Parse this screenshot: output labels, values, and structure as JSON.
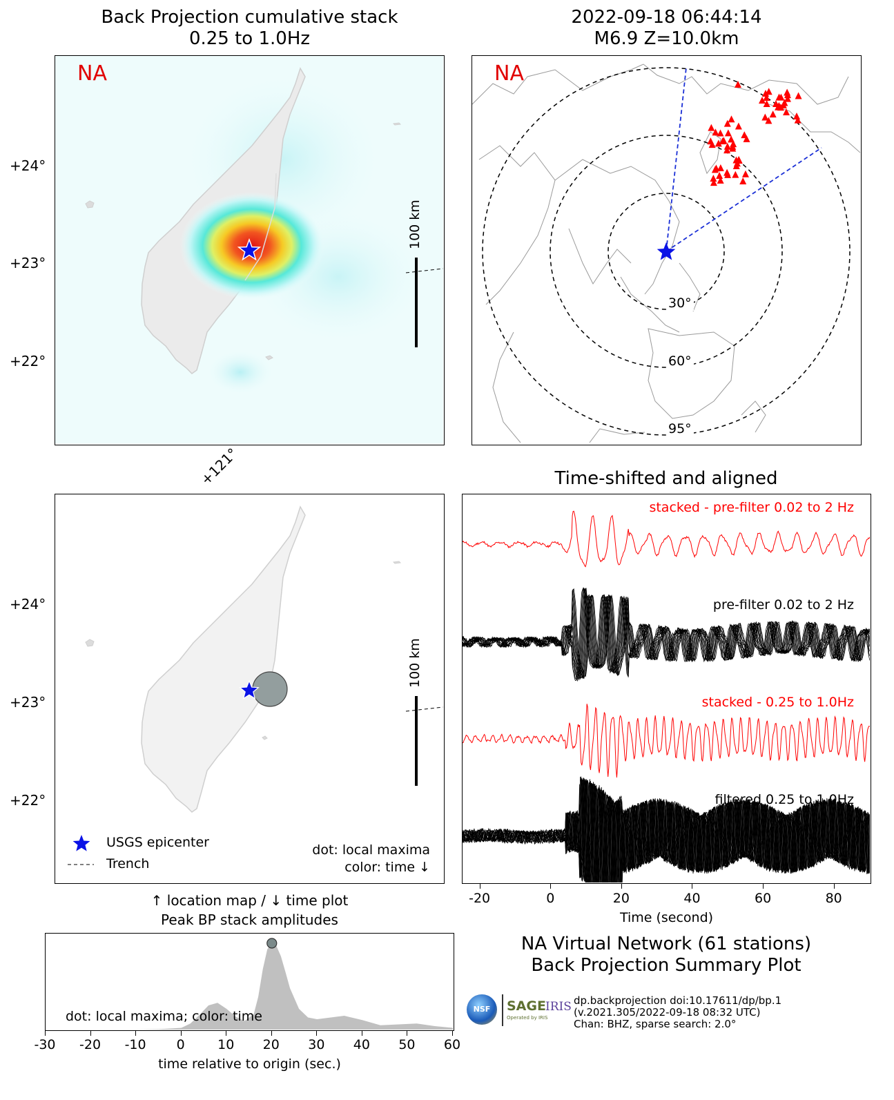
{
  "bp_map": {
    "title_line1": "Back Projection cumulative stack",
    "title_line2": "0.25 to 1.0Hz",
    "network": "NA",
    "lat_ticks": [
      "+24°",
      "+23°",
      "+22°"
    ],
    "lon_tick": "+121°",
    "scale_label": "100 km",
    "colors": {
      "land": "#ebebeb",
      "coast": "#cfcfcf",
      "hot": "#e32010",
      "cool": "#37e3ed"
    }
  },
  "event_map": {
    "title_line1": "2022-09-18 06:44:14",
    "title_line2": "M6.9 Z=10.0km",
    "network": "NA",
    "ring_labels": [
      "30°",
      "60°",
      "95°"
    ],
    "colors": {
      "station": "#ff0000",
      "great_circle": "#1a2fd6",
      "epicenter": "#0a12e6"
    }
  },
  "location_map": {
    "lat_ticks": [
      "+24°",
      "+23°",
      "+22°"
    ],
    "scale_label": "100 km",
    "legend": {
      "epicenter": "USGS epicenter",
      "trench": "Trench"
    },
    "note_line1": "dot: local maxima",
    "note_line2": "color: time ↓",
    "caption_line1": "↑ location map / ↓ time plot",
    "caption_line2": "Peak BP stack amplitudes"
  },
  "waveforms": {
    "title": "Time-shifted and aligned",
    "traces": [
      {
        "label": "stacked - pre-filter 0.02 to 2 Hz",
        "color": "#ff0000"
      },
      {
        "label": "pre-filter 0.02 to 2 Hz",
        "color": "#000000"
      },
      {
        "label": "stacked - 0.25 to 1.0Hz",
        "color": "#ff0000"
      },
      {
        "label": "filtered 0.25 to 1.0Hz",
        "color": "#000000"
      }
    ],
    "xlabel": "Time (second)",
    "xticks": [
      -20,
      0,
      20,
      40,
      60,
      80
    ],
    "xlim": [
      -25,
      90
    ]
  },
  "summary": {
    "line1": "NA Virtual Network (61 stations)",
    "line2": "Back Projection Summary Plot",
    "info_line1": "dp.backprojection doi:10.17611/dp/bp.1",
    "info_line2": "(v.2021.305/2022-09-18 08:32 UTC)",
    "info_line3": "Chan: BHZ, sparse search: 2.0°",
    "logo_nsf": "NSF",
    "logo_sage": "SAGE",
    "logo_sage_sub": "Operated by IRIS",
    "logo_iris": "IRIS"
  },
  "chart_data": {
    "type": "area",
    "note": "dot: local maxima; color: time",
    "xlabel": "time relative to origin (sec.)",
    "xlim": [
      -30,
      60
    ],
    "xticks": [
      -30,
      -20,
      -10,
      0,
      10,
      20,
      30,
      40,
      50,
      60
    ],
    "x": [
      -30,
      -20,
      -10,
      -5,
      0,
      2,
      4,
      6,
      8,
      10,
      12,
      14,
      16,
      17,
      18,
      19,
      20,
      21,
      22,
      23,
      24,
      26,
      28,
      30,
      33,
      36,
      40,
      44,
      48,
      52,
      56,
      60
    ],
    "values": [
      0,
      0,
      0,
      0.005,
      0.02,
      0.07,
      0.17,
      0.28,
      0.31,
      0.24,
      0.15,
      0.1,
      0.18,
      0.38,
      0.7,
      0.93,
      1.0,
      0.97,
      0.85,
      0.67,
      0.48,
      0.24,
      0.14,
      0.12,
      0.14,
      0.16,
      0.11,
      0.05,
      0.06,
      0.07,
      0.04,
      0.02
    ],
    "peak": {
      "x": 20,
      "value": 1.0
    },
    "fill": "#c0c0c0",
    "dot_color": "#7b8a8a"
  }
}
